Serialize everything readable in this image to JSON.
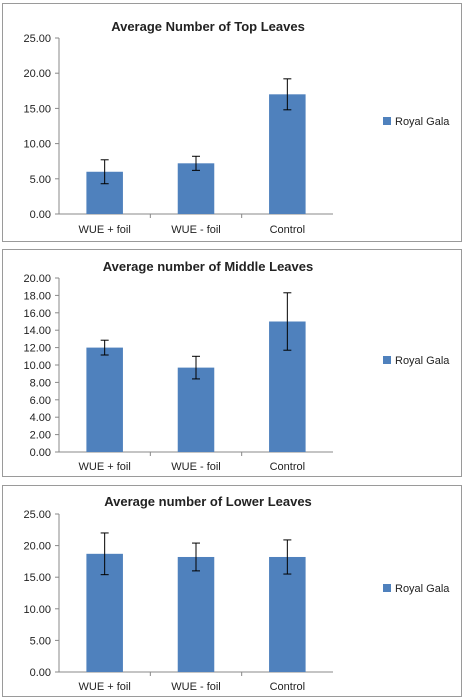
{
  "chart_data": [
    {
      "type": "bar",
      "title": "Average Number of Top Leaves",
      "categories": [
        "WUE + foil",
        "WUE - foil",
        "Control"
      ],
      "series": [
        {
          "name": "Royal Gala",
          "values": [
            6.0,
            7.2,
            17.0
          ],
          "errors": [
            1.7,
            1.0,
            2.2
          ]
        }
      ],
      "ylim": [
        0,
        25
      ],
      "yticks": [
        "0.00",
        "5.00",
        "10.00",
        "15.00",
        "20.00",
        "25.00"
      ],
      "legend": "right",
      "color": "#4f81bd"
    },
    {
      "type": "bar",
      "title": "Average number of Middle Leaves",
      "categories": [
        "WUE + foil",
        "WUE - foil",
        "Control"
      ],
      "series": [
        {
          "name": "Royal Gala",
          "values": [
            12.0,
            9.7,
            15.0
          ],
          "errors": [
            0.85,
            1.3,
            3.3
          ]
        }
      ],
      "ylim": [
        0,
        20
      ],
      "yticks": [
        "0.00",
        "2.00",
        "4.00",
        "6.00",
        "8.00",
        "10.00",
        "12.00",
        "14.00",
        "16.00",
        "18.00",
        "20.00"
      ],
      "legend": "right",
      "color": "#4f81bd"
    },
    {
      "type": "bar",
      "title": "Average number of Lower Leaves",
      "categories": [
        "WUE + foil",
        "WUE - foil",
        "Control"
      ],
      "series": [
        {
          "name": "Royal Gala",
          "values": [
            18.7,
            18.2,
            18.2
          ],
          "errors": [
            3.3,
            2.2,
            2.7
          ]
        }
      ],
      "ylim": [
        0,
        25
      ],
      "yticks": [
        "0.00",
        "5.00",
        "10.00",
        "15.00",
        "20.00",
        "25.00"
      ],
      "legend": "right",
      "color": "#4f81bd"
    }
  ]
}
